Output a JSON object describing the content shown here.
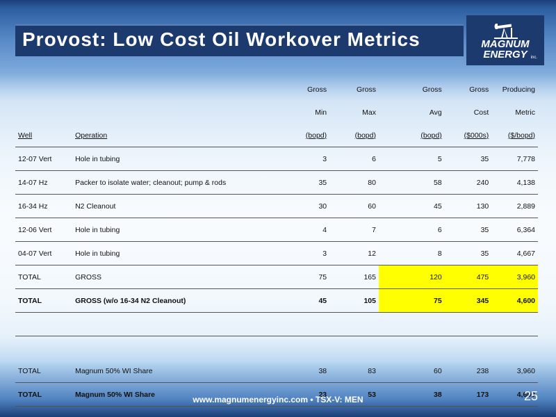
{
  "title": "Provost: Low Cost Oil Workover Metrics",
  "logo": {
    "line1": "MAGNUM",
    "line2": "ENERGY",
    "inc": "inc."
  },
  "table": {
    "headers": {
      "gross_min": [
        "Gross",
        "Min"
      ],
      "gross_max": [
        "Gross",
        "Max"
      ],
      "gross_avg": [
        "Gross",
        "Avg"
      ],
      "gross_cost": [
        "Gross",
        "Cost"
      ],
      "producing_metric": [
        "Producing",
        "Metric"
      ]
    },
    "units": {
      "well": "Well",
      "operation": "Operation",
      "gross_min": "(bopd)",
      "gross_max": "(bopd)",
      "gross_avg": "(bopd)",
      "gross_cost": "($000s)",
      "producing_metric": "($/bopd)"
    },
    "rows": [
      {
        "well": "12-07 Vert",
        "operation": "Hole in tubing",
        "min": "3",
        "max": "6",
        "avg": "5",
        "cost": "35",
        "metric": "7,778"
      },
      {
        "well": "14-07 Hz",
        "operation": "Packer to isolate water; cleanout; pump & rods",
        "min": "35",
        "max": "80",
        "avg": "58",
        "cost": "240",
        "metric": "4,138"
      },
      {
        "well": "16-34 Hz",
        "operation": "N2 Cleanout",
        "min": "30",
        "max": "60",
        "avg": "45",
        "cost": "130",
        "metric": "2,889"
      },
      {
        "well": "12-06 Vert",
        "operation": "Hole in tubing",
        "min": "4",
        "max": "7",
        "avg": "6",
        "cost": "35",
        "metric": "6,364"
      },
      {
        "well": "04-07 Vert",
        "operation": "Hole in tubing",
        "min": "3",
        "max": "12",
        "avg": "8",
        "cost": "35",
        "metric": "4,667"
      }
    ],
    "totals": [
      {
        "well": "TOTAL",
        "operation": "GROSS",
        "min": "75",
        "max": "165",
        "avg": "120",
        "cost": "475",
        "metric": "3,960"
      },
      {
        "well": "TOTAL",
        "operation": "GROSS (w/o 16-34 N2 Cleanout)",
        "min": "45",
        "max": "105",
        "avg": "75",
        "cost": "345",
        "metric": "4,600"
      }
    ],
    "share": [
      {
        "well": "TOTAL",
        "operation": "Magnum 50% WI Share",
        "min": "38",
        "max": "83",
        "avg": "60",
        "cost": "238",
        "metric": "3,960"
      },
      {
        "well": "TOTAL",
        "operation": "Magnum 50% WI Share",
        "min": "23",
        "max": "53",
        "avg": "38",
        "cost": "173",
        "metric": "4,600"
      }
    ]
  },
  "footer": {
    "text": "www.magnumenergyinc.com  •  TSX-V: MEN",
    "page": "25"
  },
  "colors": {
    "title_bar": "#1c3a6e",
    "highlight": "#ffff00"
  }
}
